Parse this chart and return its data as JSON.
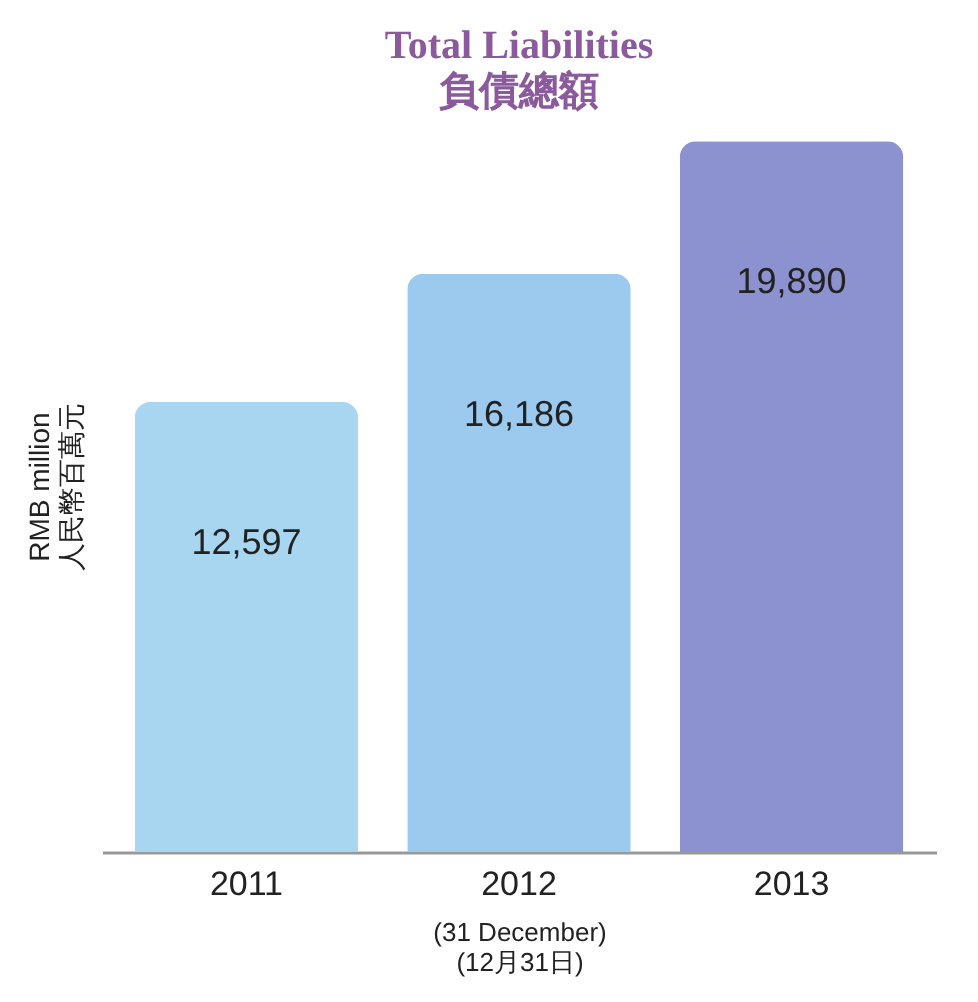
{
  "chart_data": {
    "type": "bar",
    "title": "Total Liabilities",
    "subtitle": "負債總額",
    "xlabel": "(31 December)\n(12月31日)",
    "ylabel": "RMB million\n人民幣百萬元",
    "categories": [
      "2011",
      "2012",
      "2013"
    ],
    "values": [
      12597,
      16186,
      19890
    ],
    "colors": [
      "#a8d5f0",
      "#9ccaee",
      "#8c92cf"
    ],
    "value_labels": [
      "12,597",
      "16,186",
      "19,890"
    ]
  }
}
